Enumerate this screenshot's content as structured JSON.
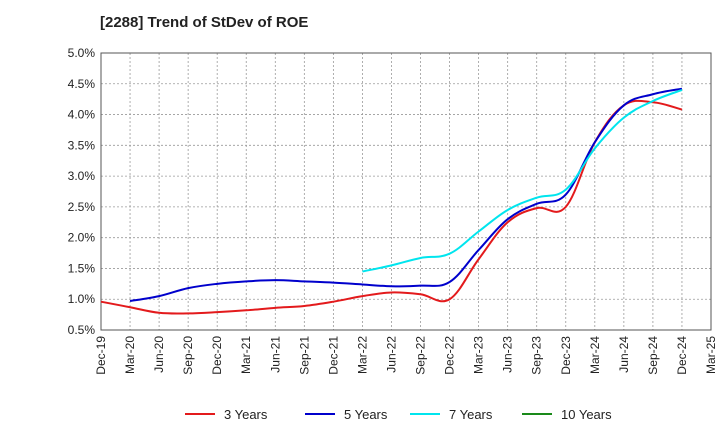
{
  "chart_data": {
    "type": "line",
    "title": "[2288]  Trend of StDev of ROE",
    "xlabel": "",
    "ylabel": "",
    "ylim": [
      0.5,
      5.0
    ],
    "y_ticks": [
      "0.5%",
      "1.0%",
      "1.5%",
      "2.0%",
      "2.5%",
      "3.0%",
      "3.5%",
      "4.0%",
      "4.5%",
      "5.0%"
    ],
    "x_ticks": [
      "Dec-19",
      "Mar-20",
      "Jun-20",
      "Sep-20",
      "Dec-20",
      "Mar-21",
      "Jun-21",
      "Sep-21",
      "Dec-21",
      "Mar-22",
      "Jun-22",
      "Sep-22",
      "Dec-22",
      "Mar-23",
      "Jun-23",
      "Sep-23",
      "Dec-23",
      "Mar-24",
      "Jun-24",
      "Sep-24",
      "Dec-24",
      "Mar-25"
    ],
    "grid": true,
    "legend_position": "bottom",
    "series": [
      {
        "name": "3 Years",
        "color": "#e31a1c",
        "points": [
          [
            "Dec-19",
            0.96
          ],
          [
            "Mar-20",
            0.87
          ],
          [
            "Jun-20",
            0.78
          ],
          [
            "Sep-20",
            0.77
          ],
          [
            "Dec-20",
            0.79
          ],
          [
            "Mar-21",
            0.82
          ],
          [
            "Jun-21",
            0.86
          ],
          [
            "Sep-21",
            0.89
          ],
          [
            "Dec-21",
            0.96
          ],
          [
            "Mar-22",
            1.05
          ],
          [
            "Jun-22",
            1.11
          ],
          [
            "Sep-22",
            1.08
          ],
          [
            "Dec-22",
            1.0
          ],
          [
            "Mar-23",
            1.65
          ],
          [
            "Jun-23",
            2.25
          ],
          [
            "Sep-23",
            2.48
          ],
          [
            "Dec-23",
            2.5
          ],
          [
            "Mar-24",
            3.55
          ],
          [
            "Jun-24",
            4.15
          ],
          [
            "Sep-24",
            4.2
          ],
          [
            "Dec-24",
            4.08
          ]
        ]
      },
      {
        "name": "5 Years",
        "color": "#0000cc",
        "points": [
          [
            "Mar-20",
            0.97
          ],
          [
            "Jun-20",
            1.05
          ],
          [
            "Sep-20",
            1.18
          ],
          [
            "Dec-20",
            1.25
          ],
          [
            "Mar-21",
            1.29
          ],
          [
            "Jun-21",
            1.31
          ],
          [
            "Sep-21",
            1.29
          ],
          [
            "Dec-21",
            1.27
          ],
          [
            "Mar-22",
            1.24
          ],
          [
            "Jun-22",
            1.21
          ],
          [
            "Sep-22",
            1.22
          ],
          [
            "Dec-22",
            1.28
          ],
          [
            "Mar-23",
            1.8
          ],
          [
            "Jun-23",
            2.3
          ],
          [
            "Sep-23",
            2.55
          ],
          [
            "Dec-23",
            2.7
          ],
          [
            "Mar-24",
            3.55
          ],
          [
            "Jun-24",
            4.15
          ],
          [
            "Sep-24",
            4.33
          ],
          [
            "Dec-24",
            4.42
          ]
        ]
      },
      {
        "name": "7 Years",
        "color": "#00e5ee",
        "points": [
          [
            "Mar-22",
            1.45
          ],
          [
            "Jun-22",
            1.55
          ],
          [
            "Sep-22",
            1.67
          ],
          [
            "Dec-22",
            1.74
          ],
          [
            "Mar-23",
            2.1
          ],
          [
            "Jun-23",
            2.45
          ],
          [
            "Sep-23",
            2.65
          ],
          [
            "Dec-23",
            2.78
          ],
          [
            "Mar-24",
            3.45
          ],
          [
            "Jun-24",
            3.95
          ],
          [
            "Sep-24",
            4.22
          ],
          [
            "Dec-24",
            4.4
          ]
        ]
      },
      {
        "name": "10 Years",
        "color": "#1a8a1a",
        "points": []
      }
    ]
  }
}
